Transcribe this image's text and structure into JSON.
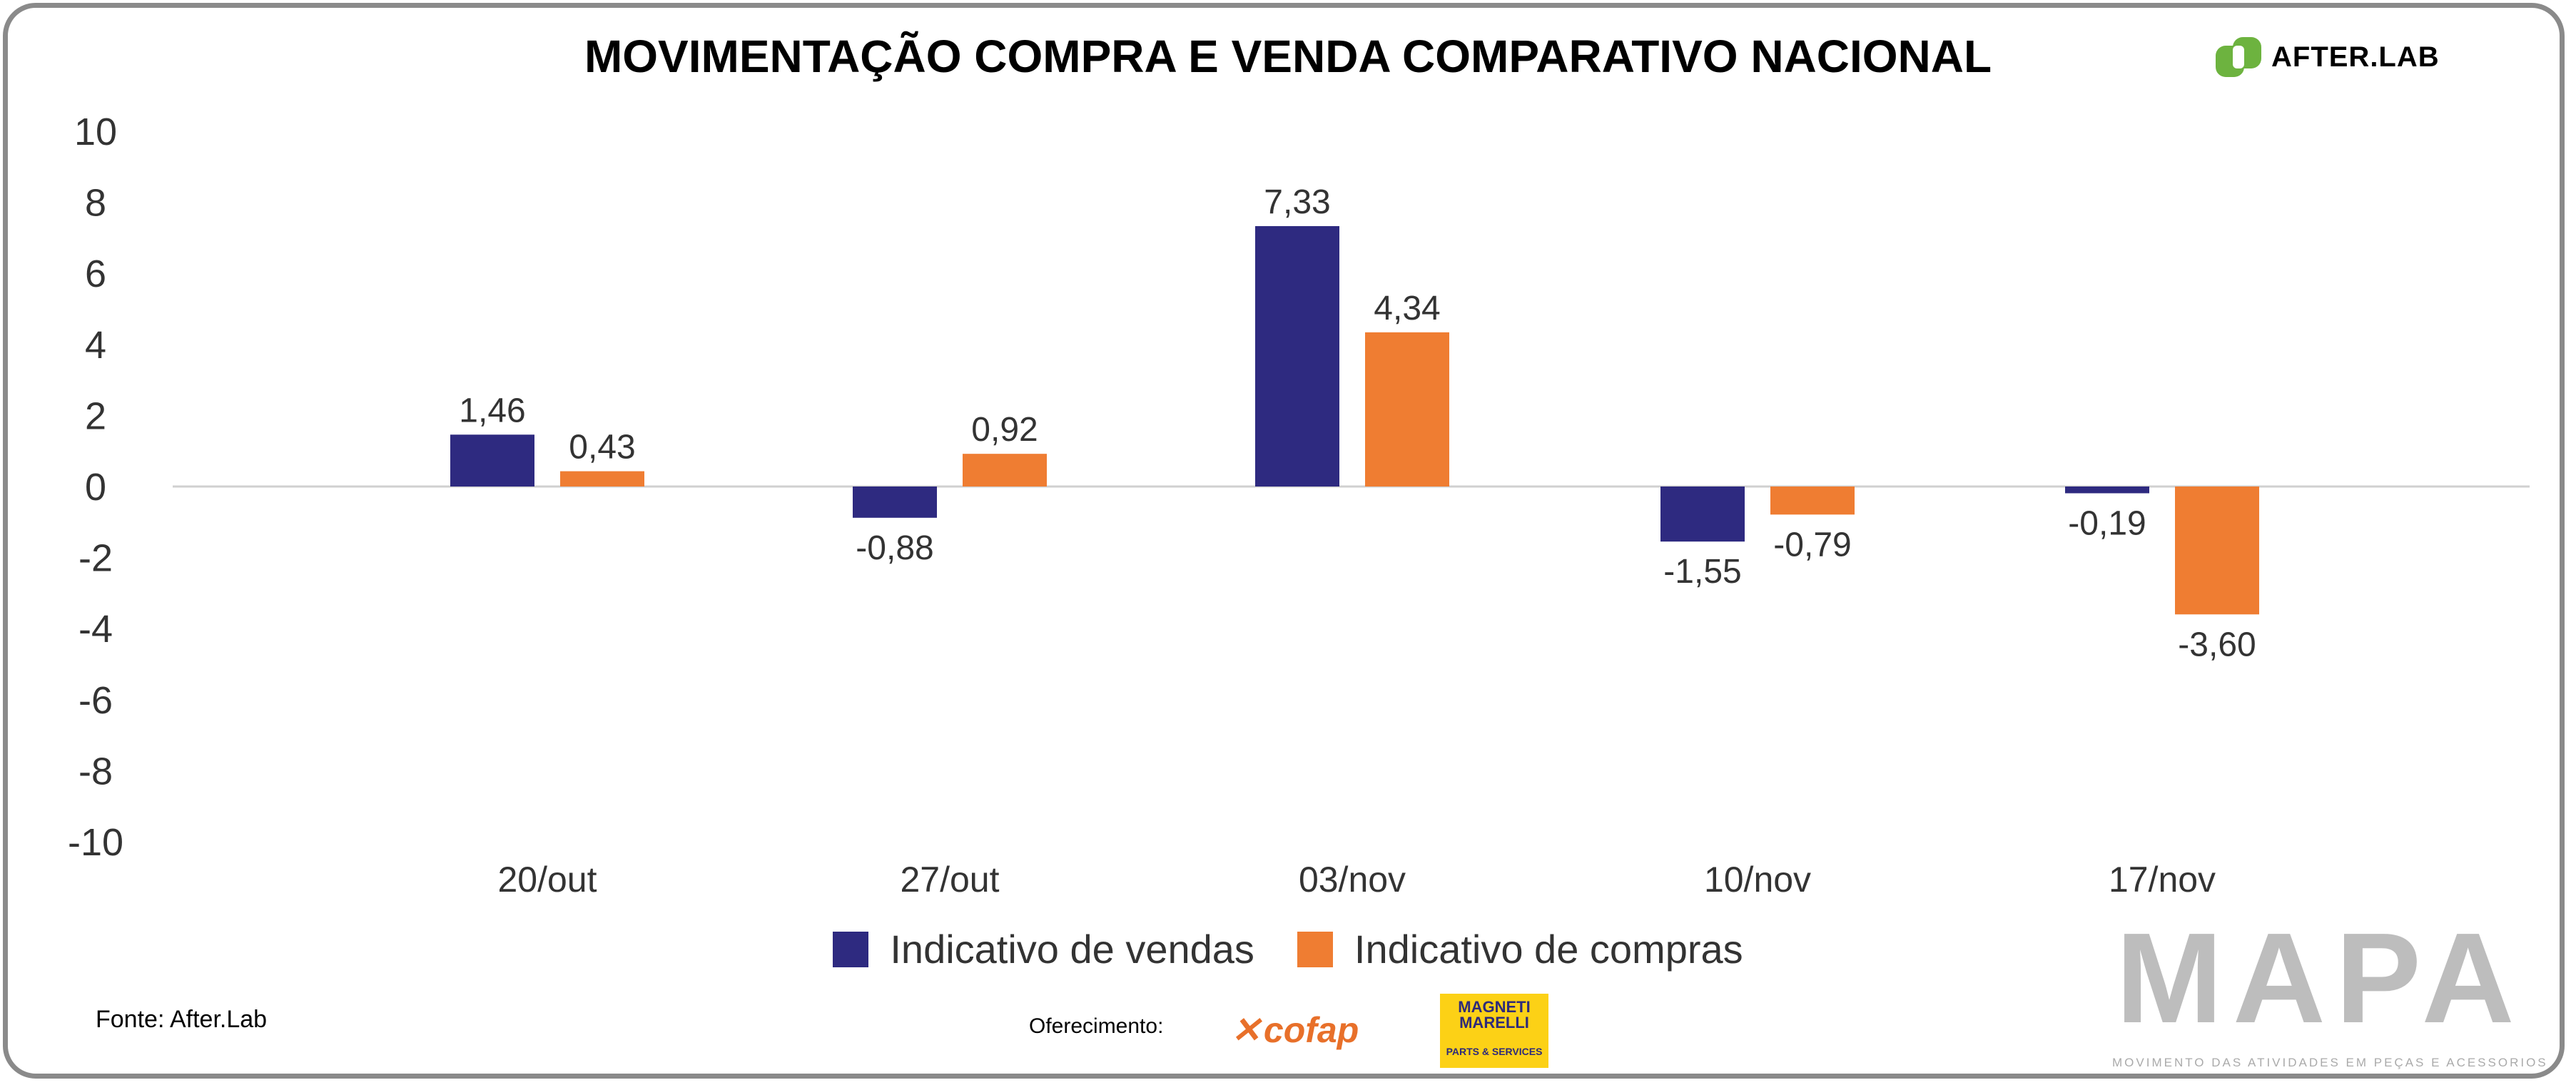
{
  "chart_data": {
    "type": "bar",
    "title": "MOVIMENTAÇÃO COMPRA E VENDA COMPARATIVO NACIONAL",
    "categories": [
      "20/out",
      "27/out",
      "03/nov",
      "10/nov",
      "17/nov"
    ],
    "series": [
      {
        "name": "Indicativo de vendas",
        "color": "#2e2a80",
        "values": [
          1.46,
          -0.88,
          7.33,
          -1.55,
          -0.19
        ],
        "labels": [
          "1,46",
          "-0,88",
          "7,33",
          "-1,55",
          "-0,19"
        ]
      },
      {
        "name": "Indicativo de compras",
        "color": "#ef7d32",
        "values": [
          0.43,
          0.92,
          4.34,
          -0.79,
          -3.6
        ],
        "labels": [
          "0,43",
          "0,92",
          "4,34",
          "-0,79",
          "-3,60"
        ]
      }
    ],
    "ylim": [
      -10,
      10
    ],
    "yticks": [
      "10",
      "8",
      "6",
      "4",
      "2",
      "0",
      "-2",
      "-4",
      "-6",
      "-8",
      "-10"
    ],
    "ytick_values": [
      10,
      8,
      6,
      4,
      2,
      0,
      -2,
      -4,
      -6,
      -8,
      -10
    ],
    "grid": false,
    "legend": "bottom-center",
    "xlabel": "",
    "ylabel": ""
  },
  "branding": {
    "afterlab": "AFTER.LAB",
    "source": "Fonte: After.Lab",
    "offered_by": "Oferecimento:",
    "cofap": "cofap",
    "magneti_marelli_1": "MAGNETI",
    "magneti_marelli_2": "MARELLI",
    "magneti_sub": "PARTS & SERVICES",
    "mapa": "MAPA",
    "mapa_sub": "MOVIMENTO DAS ATIVIDADES EM PEÇAS E ACESSORIOS"
  }
}
